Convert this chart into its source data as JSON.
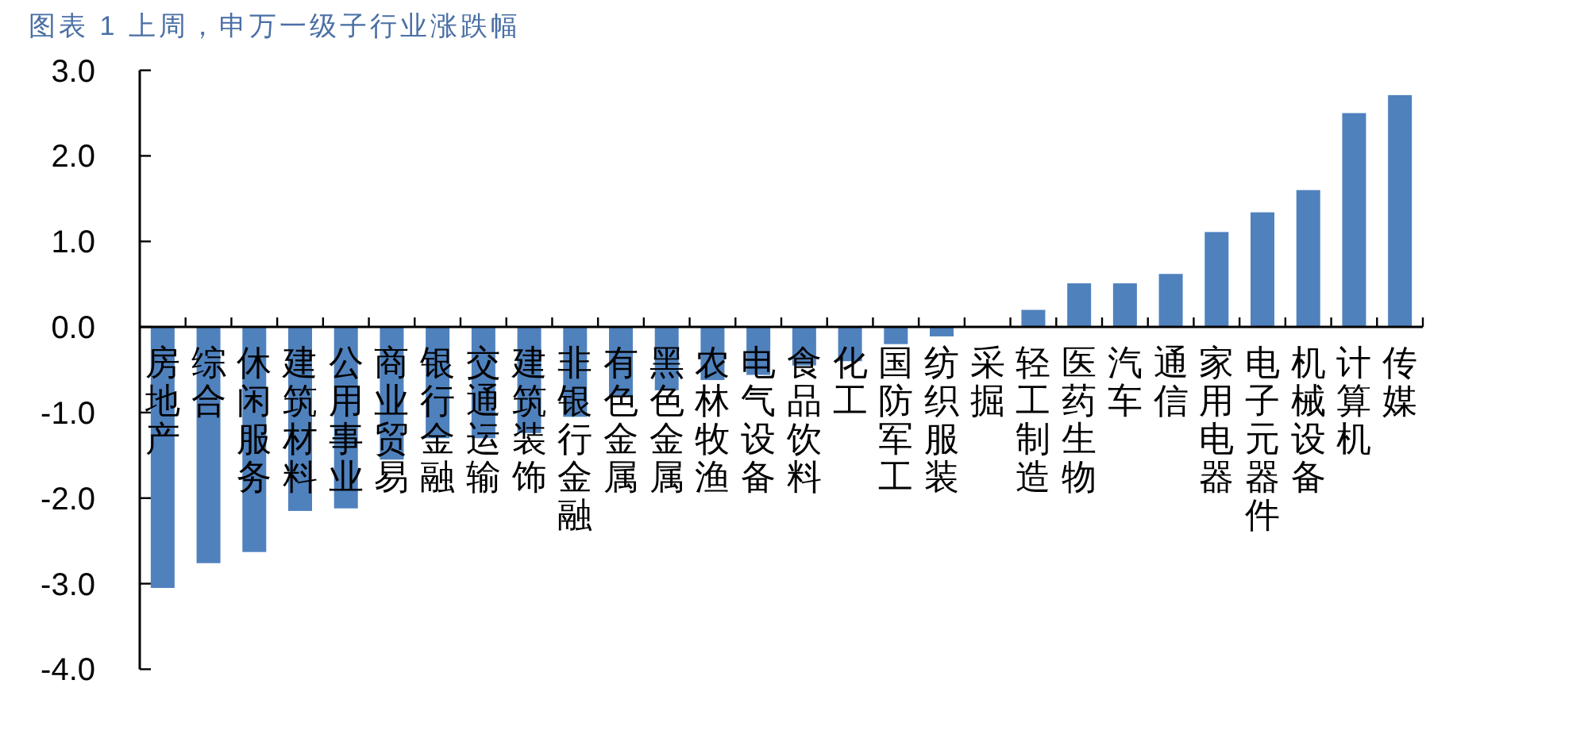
{
  "chart_data": {
    "type": "bar",
    "title": "图表 1 上周，申万一级子行业涨跌幅",
    "categories": [
      "房地产",
      "综合",
      "休闲服务",
      "建筑材料",
      "公用事业",
      "商业贸易",
      "银行金融",
      "交通运输",
      "建筑装饰",
      "非银行金融",
      "有色金属",
      "黑色金属",
      "农林牧渔",
      "电气设备",
      "食品饮料",
      "化工",
      "国防军工",
      "纺织服装",
      "采掘",
      "轻工制造",
      "医药生物",
      "汽车",
      "通信",
      "家用电器",
      "电子元器件",
      "机械设备",
      "计算机",
      "传媒"
    ],
    "values": [
      -3.05,
      -2.76,
      -2.63,
      -2.15,
      -2.12,
      -1.55,
      -1.3,
      -1.3,
      -1.24,
      -1.05,
      -0.8,
      -0.74,
      -0.62,
      -0.56,
      -0.45,
      -0.4,
      -0.2,
      -0.11,
      0,
      0.2,
      0.51,
      0.51,
      0.62,
      1.11,
      1.34,
      1.6,
      2.5,
      2.71
    ],
    "color": "#4f81bd",
    "ylim": [
      -4,
      3
    ],
    "yticks": [
      {
        "value": -4,
        "label": "-4.0"
      },
      {
        "value": -3,
        "label": "-3.0"
      },
      {
        "value": -2,
        "label": "-2.0"
      },
      {
        "value": -1,
        "label": "-1.0"
      },
      {
        "value": 0,
        "label": "0.0"
      },
      {
        "value": 1,
        "label": "1.0"
      },
      {
        "value": 2,
        "label": "2.0"
      },
      {
        "value": 3,
        "label": "3.0"
      }
    ],
    "grid": false
  }
}
